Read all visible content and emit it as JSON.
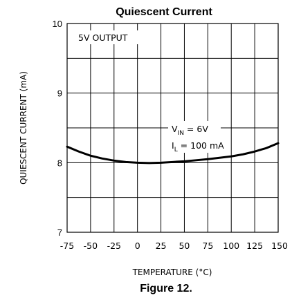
{
  "chart_data": {
    "type": "line",
    "title": "Quiescent Current",
    "xlabel": "TEMPERATURE (°C)",
    "ylabel": "QUIESCENT CURRENT (mA)",
    "caption": "Figure 12.",
    "xlim": [
      -75,
      150
    ],
    "ylim": [
      7,
      10
    ],
    "x_ticks": [
      "-75",
      "-50",
      "-25",
      "0",
      "25",
      "50",
      "75",
      "100",
      "125",
      "150"
    ],
    "y_ticks": [
      "7",
      "8",
      "9",
      "10"
    ],
    "grid": true,
    "annotations": {
      "output": "5V OUTPUT",
      "vin": "V",
      "vin_sub": "IN",
      "vin_val": " = 6V",
      "il": "I",
      "il_sub": "L",
      "il_val": " = 100 mA"
    },
    "series": [
      {
        "x": [
          -75,
          -62.5,
          -50,
          -37.5,
          -25,
          -12.5,
          0,
          12.5,
          25,
          37.5,
          50,
          62.5,
          75,
          87.5,
          100,
          112.5,
          125,
          137.5,
          150
        ],
        "y": [
          8.23,
          8.16,
          8.1,
          8.06,
          8.03,
          8.01,
          8.0,
          7.995,
          8.0,
          8.01,
          8.02,
          8.035,
          8.05,
          8.07,
          8.09,
          8.12,
          8.16,
          8.21,
          8.28
        ]
      }
    ]
  }
}
